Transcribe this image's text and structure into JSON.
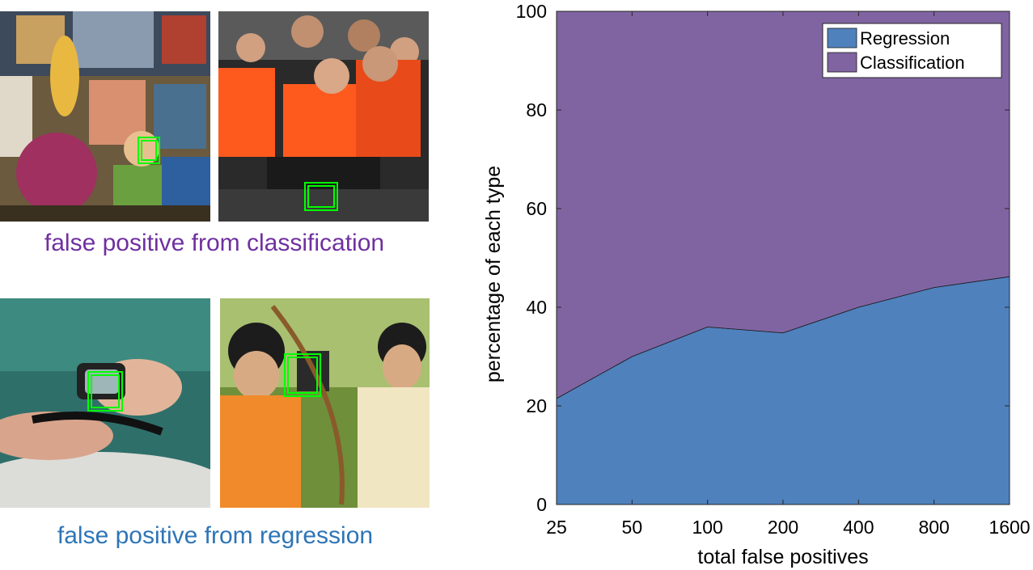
{
  "captions": {
    "classification": "false positive from classification",
    "regression": "false positive from regression"
  },
  "colors": {
    "regression": "#4f81bd",
    "classification": "#8064a2",
    "caption_classification": "#7030a0",
    "caption_regression": "#2e75b6",
    "detection_box": "#00ff00"
  },
  "photos": [
    {
      "name": "cartoon-crowd-photo"
    },
    {
      "name": "race-crowd-photo"
    },
    {
      "name": "snorkel-swimmer-photo"
    },
    {
      "name": "archery-kids-photo"
    }
  ],
  "chart_data": {
    "type": "area",
    "stacked": true,
    "x_scale": "log2",
    "x": [
      25,
      50,
      100,
      200,
      400,
      800,
      1600
    ],
    "xticks": [
      "25",
      "50",
      "100",
      "200",
      "400",
      "800",
      "1600"
    ],
    "yticks": [
      "0",
      "20",
      "40",
      "60",
      "80",
      "100"
    ],
    "ylim": [
      0,
      100
    ],
    "xlabel": "total false positives",
    "ylabel": "percentage of each type",
    "legend_position": "top-right",
    "series": [
      {
        "name": "Regression",
        "color": "#4f81bd",
        "values": [
          21.5,
          30,
          36,
          34.8,
          40,
          44,
          46.2
        ]
      },
      {
        "name": "Classification",
        "color": "#8064a2",
        "values": [
          78.5,
          70,
          64,
          65.2,
          60,
          56,
          53.8
        ]
      }
    ]
  }
}
